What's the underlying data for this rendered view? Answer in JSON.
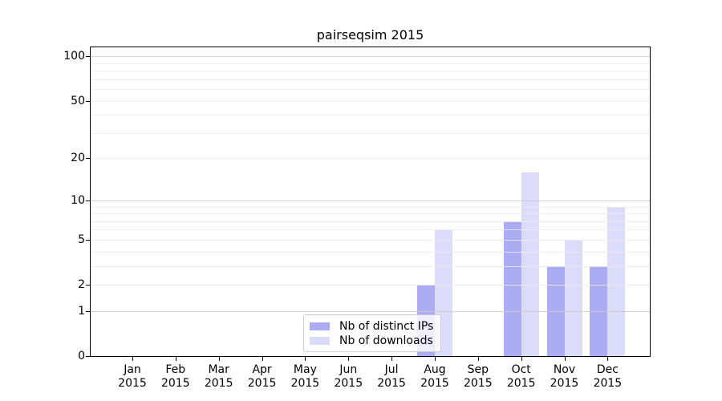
{
  "chart_data": {
    "type": "bar",
    "title": "pairseqsim 2015",
    "year_label": "2015",
    "categories": [
      "Jan",
      "Feb",
      "Mar",
      "Apr",
      "May",
      "Jun",
      "Jul",
      "Aug",
      "Sep",
      "Oct",
      "Nov",
      "Dec"
    ],
    "series": [
      {
        "name": "Nb of distinct IPs",
        "color": "#acacf4",
        "values": [
          0,
          0,
          0,
          0,
          0,
          0,
          0,
          2,
          0,
          7,
          3,
          3
        ]
      },
      {
        "name": "Nb of downloads",
        "color": "#dbdbfa",
        "values": [
          0,
          0,
          0,
          0,
          0,
          0,
          0,
          6,
          0,
          16,
          5,
          9
        ]
      }
    ],
    "yticks": [
      0,
      1,
      2,
      5,
      10,
      20,
      50,
      100
    ],
    "ylim": [
      0,
      115
    ],
    "scale": "log10(1+x)",
    "grid": {
      "major": [
        1,
        10,
        100
      ],
      "minor": [
        2,
        3,
        4,
        5,
        6,
        7,
        8,
        9,
        20,
        30,
        40,
        50,
        60,
        70,
        80,
        90
      ],
      "major_color": "#cccccc",
      "minor_color": "#ebebeb"
    },
    "legend_position": "lower center"
  },
  "styles": {
    "background": "#ffffff",
    "spine_color": "#000000",
    "text_color": "#000000"
  }
}
